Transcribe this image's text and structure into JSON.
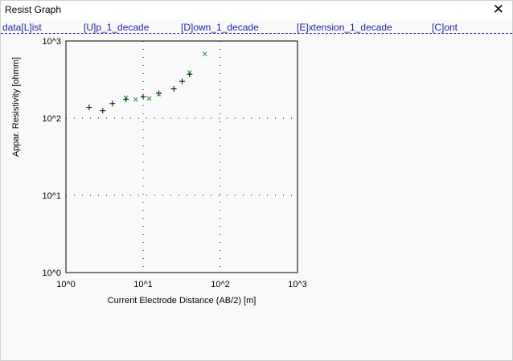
{
  "window": {
    "title": "Resist Graph"
  },
  "menu": [
    {
      "label": "data[L]ist"
    },
    {
      "label": "[U]p_1_decade"
    },
    {
      "label": "[D]own_1_decade"
    },
    {
      "label": "[E]xtension_1_decade"
    },
    {
      "label": "[C]ont"
    }
  ],
  "chart_data": {
    "type": "scatter",
    "xscale": "log",
    "yscale": "log",
    "xlim": [
      1,
      1000
    ],
    "ylim": [
      1,
      1000
    ],
    "xlabel": "Current Electrode Distance (AB/2) [m]",
    "ylabel": "Appar. Resistivity [ohmm]",
    "xticks": [
      "10^0",
      "10^1",
      "10^2",
      "10^3"
    ],
    "yticks": [
      "10^0",
      "10^1",
      "10^2",
      "10^3"
    ],
    "grid": true,
    "series": [
      {
        "marker": "plus",
        "color": "#000000",
        "points": [
          [
            2.0,
            138
          ],
          [
            3.0,
            125
          ],
          [
            4.0,
            155
          ],
          [
            6.0,
            175
          ],
          [
            10.0,
            190
          ],
          [
            16.0,
            210
          ],
          [
            25.0,
            240
          ],
          [
            32.0,
            300
          ],
          [
            40.0,
            370
          ]
        ]
      },
      {
        "marker": "cross",
        "color": "#2a8a2a",
        "points": [
          [
            6.0,
            185
          ],
          [
            8.0,
            175
          ],
          [
            12.0,
            180
          ],
          [
            16.0,
            205
          ],
          [
            40.0,
            390
          ],
          [
            63.0,
            680
          ]
        ]
      }
    ]
  }
}
